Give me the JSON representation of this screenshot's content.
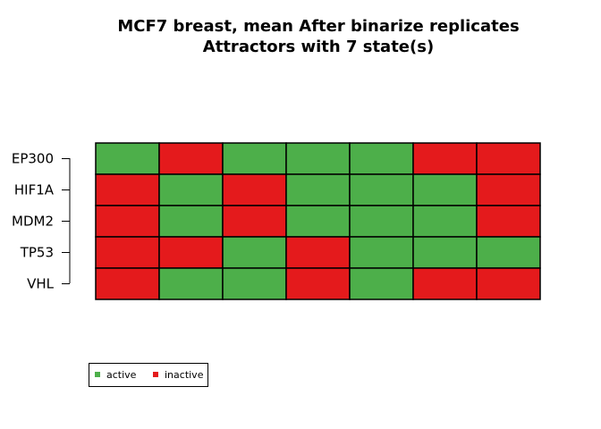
{
  "chart_data": {
    "type": "heatmap",
    "title": "MCF7 breast, mean After binarize replicates",
    "subtitle": "Attractors with 7 state(s)",
    "rows": [
      "EP300",
      "HIF1A",
      "MDM2",
      "TP53",
      "VHL"
    ],
    "n_states": 7,
    "values": [
      [
        1,
        0,
        1,
        1,
        1,
        0,
        0
      ],
      [
        0,
        1,
        0,
        1,
        1,
        1,
        0
      ],
      [
        0,
        1,
        0,
        1,
        1,
        1,
        0
      ],
      [
        0,
        0,
        1,
        0,
        1,
        1,
        1
      ],
      [
        0,
        1,
        1,
        0,
        1,
        0,
        0
      ]
    ],
    "legend": {
      "placement": "bottom-left",
      "entries": [
        {
          "label": "active",
          "value": 1,
          "color": "#4DAF4A"
        },
        {
          "label": "inactive",
          "value": 0,
          "color": "#E41A1C"
        }
      ]
    },
    "colors": {
      "active": "#4DAF4A",
      "inactive": "#E41A1C",
      "grid": "#000000"
    },
    "grid": true
  }
}
